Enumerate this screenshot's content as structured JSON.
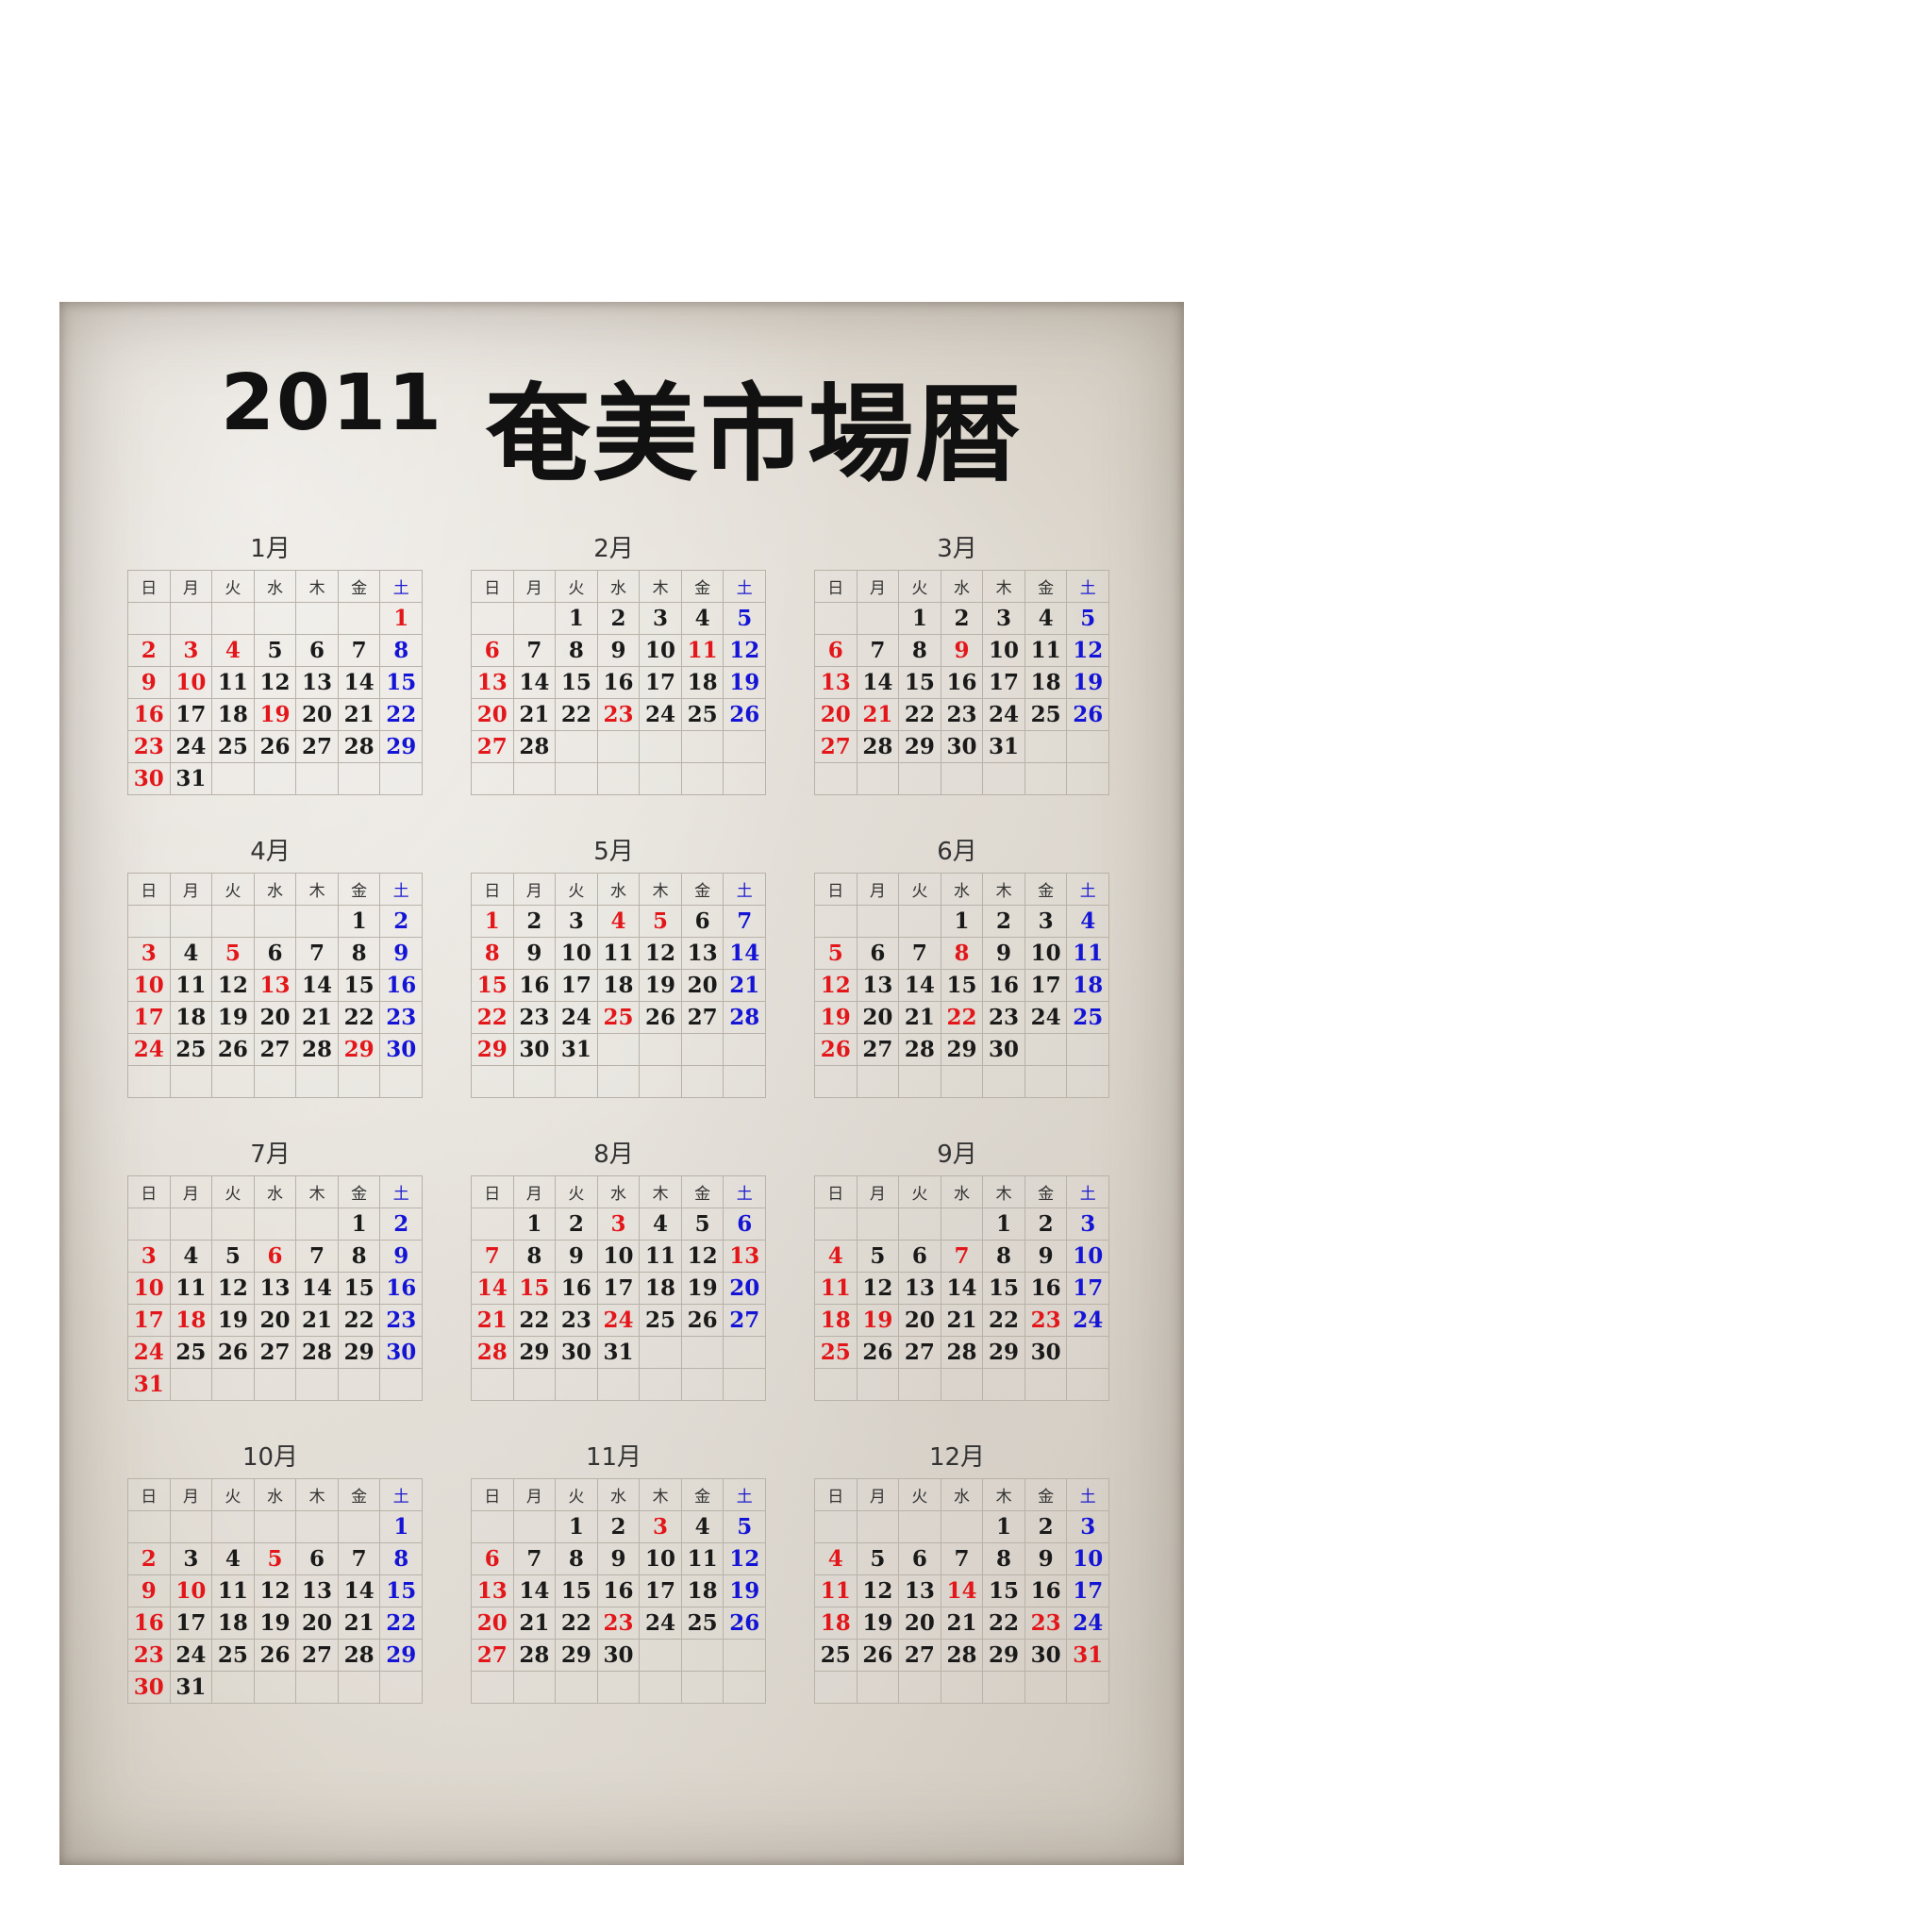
{
  "header": {
    "year": "2011",
    "name": "奄美市場暦"
  },
  "weekdays": [
    "日",
    "月",
    "火",
    "水",
    "木",
    "金",
    "土"
  ],
  "colors": {
    "holiday_red": "#e3161a",
    "saturday_blue": "#1414d6",
    "text": "#1a1a1a"
  },
  "months": [
    {
      "label": "1月",
      "start": 6,
      "days": 31,
      "red": [
        1,
        2,
        3,
        4,
        9,
        10,
        16,
        19,
        23,
        30
      ]
    },
    {
      "label": "2月",
      "start": 2,
      "days": 28,
      "red": [
        6,
        11,
        13,
        20,
        23,
        27
      ]
    },
    {
      "label": "3月",
      "start": 2,
      "days": 31,
      "red": [
        6,
        9,
        13,
        20,
        21,
        27
      ]
    },
    {
      "label": "4月",
      "start": 5,
      "days": 30,
      "red": [
        3,
        5,
        10,
        13,
        17,
        24,
        29
      ]
    },
    {
      "label": "5月",
      "start": 0,
      "days": 31,
      "red": [
        1,
        4,
        5,
        8,
        15,
        22,
        25,
        29
      ]
    },
    {
      "label": "6月",
      "start": 3,
      "days": 30,
      "red": [
        5,
        8,
        12,
        19,
        22,
        26
      ]
    },
    {
      "label": "7月",
      "start": 5,
      "days": 31,
      "red": [
        3,
        6,
        10,
        17,
        18,
        24,
        31
      ]
    },
    {
      "label": "8月",
      "start": 1,
      "days": 31,
      "red": [
        3,
        7,
        13,
        14,
        15,
        21,
        24,
        28
      ]
    },
    {
      "label": "9月",
      "start": 4,
      "days": 30,
      "red": [
        4,
        7,
        11,
        18,
        19,
        23,
        25
      ]
    },
    {
      "label": "10月",
      "start": 6,
      "days": 31,
      "red": [
        2,
        5,
        9,
        10,
        16,
        23,
        30
      ]
    },
    {
      "label": "11月",
      "start": 2,
      "days": 30,
      "red": [
        3,
        6,
        13,
        20,
        23,
        27
      ]
    },
    {
      "label": "12月",
      "start": 4,
      "days": 31,
      "red": [
        4,
        11,
        14,
        18,
        23,
        31
      ]
    }
  ]
}
